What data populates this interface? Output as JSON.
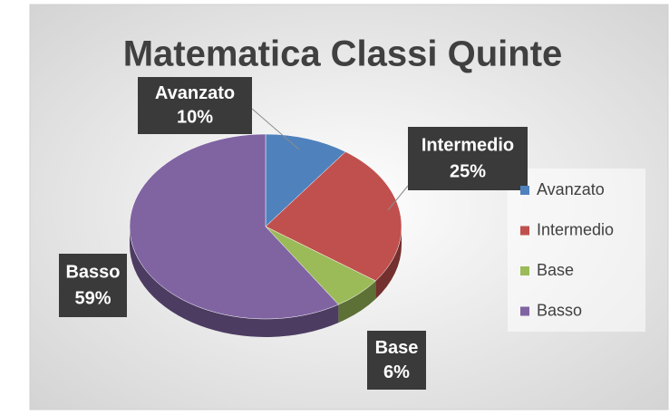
{
  "chart_data": {
    "type": "pie",
    "title": "Matematica Classi Quinte",
    "categories": [
      "Avanzato",
      "Intermedio",
      "Base",
      "Basso"
    ],
    "values": [
      10,
      25,
      6,
      59
    ],
    "value_labels": [
      "10%",
      "25%",
      "6%",
      "59%"
    ],
    "colors": [
      "#4f81bd",
      "#c0504d",
      "#9bbb59",
      "#8064a2"
    ],
    "legend": "right"
  }
}
